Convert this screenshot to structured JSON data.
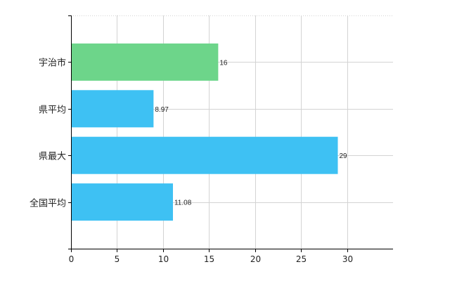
{
  "chart_data": {
    "type": "bar",
    "orientation": "horizontal",
    "categories": [
      "宇治市",
      "県平均",
      "県最大",
      "全国平均"
    ],
    "values": [
      16,
      8.97,
      29,
      11.08
    ],
    "value_labels": [
      "16",
      "8.97",
      "29",
      "11.08"
    ],
    "bar_colors": [
      "#6dd58a",
      "#3ec1f3",
      "#3ec1f3",
      "#3ec1f3"
    ],
    "xlim": [
      0,
      35
    ],
    "x_ticks": [
      0,
      5,
      10,
      15,
      20,
      25,
      30
    ],
    "x_tick_labels": [
      "0",
      "5",
      "10",
      "15",
      "20",
      "25",
      "30"
    ],
    "title": "",
    "xlabel": "",
    "ylabel": "",
    "grid": true,
    "legend": "none"
  }
}
